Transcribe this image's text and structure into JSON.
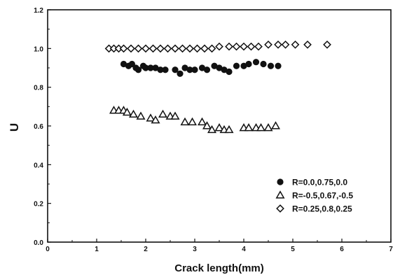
{
  "chart_data": {
    "type": "scatter",
    "title": "",
    "xlabel": "Crack length(mm)",
    "ylabel": "U",
    "xlim": [
      0,
      7
    ],
    "ylim": [
      0.0,
      1.2
    ],
    "x_ticks": [
      "0",
      "1",
      "2",
      "3",
      "4",
      "5",
      "6",
      "7"
    ],
    "y_ticks": [
      "0.0",
      "0.2",
      "0.4",
      "0.6",
      "0.8",
      "1.0",
      "1.2"
    ],
    "grid": false,
    "legend_position": "bottom-right",
    "series": [
      {
        "name": "R=0.0,0.75,0.0",
        "marker": "filled-circle",
        "color": "#111111",
        "x": [
          1.55,
          1.65,
          1.72,
          1.8,
          1.85,
          1.95,
          2.0,
          2.1,
          2.2,
          2.3,
          2.4,
          2.6,
          2.7,
          2.8,
          2.9,
          3.0,
          3.15,
          3.25,
          3.4,
          3.5,
          3.6,
          3.7,
          3.85,
          4.0,
          4.1,
          4.25,
          4.4,
          4.55,
          4.7
        ],
        "y": [
          0.92,
          0.91,
          0.92,
          0.9,
          0.89,
          0.91,
          0.9,
          0.9,
          0.9,
          0.89,
          0.89,
          0.89,
          0.87,
          0.9,
          0.89,
          0.89,
          0.9,
          0.89,
          0.91,
          0.9,
          0.89,
          0.88,
          0.91,
          0.91,
          0.92,
          0.93,
          0.92,
          0.91,
          0.91
        ]
      },
      {
        "name": "R=-0.5,0.67,-0.5",
        "marker": "open-triangle",
        "color": "#111111",
        "x": [
          1.35,
          1.45,
          1.55,
          1.62,
          1.75,
          1.9,
          2.1,
          2.2,
          2.35,
          2.5,
          2.6,
          2.8,
          2.95,
          3.15,
          3.25,
          3.35,
          3.5,
          3.6,
          3.7,
          4.0,
          4.1,
          4.25,
          4.35,
          4.5,
          4.65
        ],
        "y": [
          0.68,
          0.68,
          0.68,
          0.67,
          0.66,
          0.65,
          0.64,
          0.63,
          0.66,
          0.65,
          0.65,
          0.62,
          0.62,
          0.62,
          0.6,
          0.58,
          0.59,
          0.58,
          0.58,
          0.59,
          0.59,
          0.59,
          0.59,
          0.59,
          0.6
        ]
      },
      {
        "name": "R=0.25,0.8,0.25",
        "marker": "open-diamond",
        "color": "#111111",
        "x": [
          1.25,
          1.35,
          1.45,
          1.55,
          1.7,
          1.85,
          2.0,
          2.15,
          2.3,
          2.45,
          2.6,
          2.75,
          2.9,
          3.05,
          3.2,
          3.35,
          3.5,
          3.7,
          3.85,
          4.0,
          4.15,
          4.3,
          4.5,
          4.7,
          4.85,
          5.05,
          5.3,
          5.7
        ],
        "y": [
          1.0,
          1.0,
          1.0,
          1.0,
          1.0,
          1.0,
          1.0,
          1.0,
          1.0,
          1.0,
          1.0,
          1.0,
          1.0,
          1.0,
          1.0,
          1.0,
          1.01,
          1.01,
          1.01,
          1.01,
          1.01,
          1.01,
          1.02,
          1.02,
          1.02,
          1.02,
          1.02,
          1.02
        ]
      }
    ]
  }
}
